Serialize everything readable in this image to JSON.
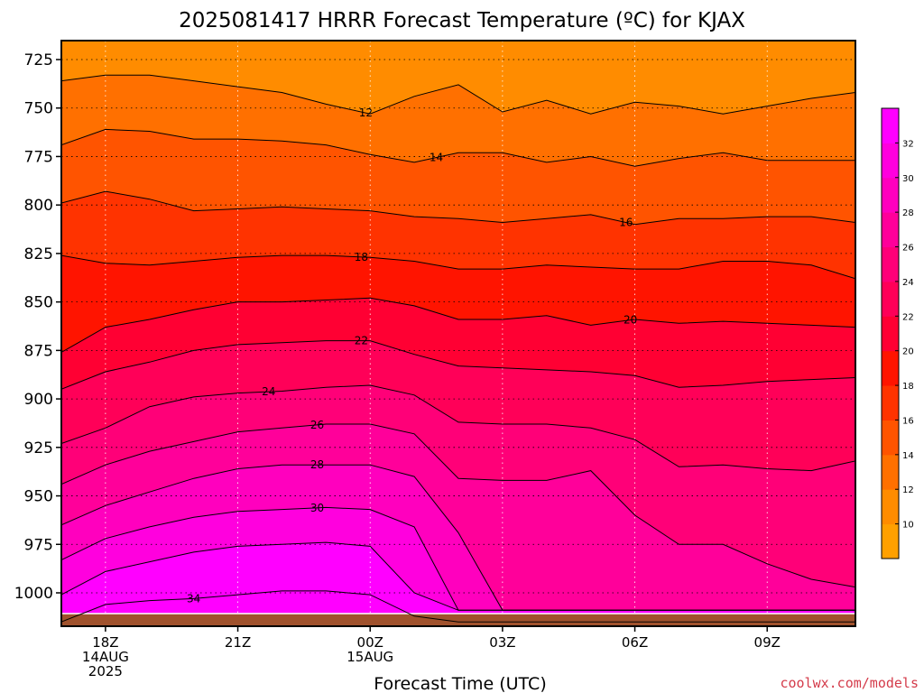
{
  "chart_data": {
    "type": "heatmap",
    "title": "2025081417 HRRR Forecast Temperature (ºC) for KJAX",
    "xlabel": "Forecast Time (UTC)",
    "ylabel": "",
    "credit": "coolwx.com/models",
    "yaxis": {
      "units": "hPa",
      "range": [
        1020,
        710
      ],
      "ticks": [
        725,
        750,
        775,
        800,
        825,
        850,
        875,
        900,
        925,
        950,
        975,
        1000
      ]
    },
    "xaxis": {
      "range_hours_after_17Z_14AUG": [
        0,
        18
      ],
      "ticks": [
        {
          "hour": 1,
          "lines": [
            "18Z",
            "14AUG",
            "2025"
          ]
        },
        {
          "hour": 4,
          "lines": [
            "21Z"
          ]
        },
        {
          "hour": 7,
          "lines": [
            "00Z",
            "15AUG"
          ]
        },
        {
          "hour": 10,
          "lines": [
            "03Z"
          ]
        },
        {
          "hour": 13,
          "lines": [
            "06Z"
          ]
        },
        {
          "hour": 16,
          "lines": [
            "09Z"
          ]
        }
      ]
    },
    "colorbar": {
      "levels": [
        8,
        10,
        12,
        14,
        16,
        18,
        20,
        22,
        24,
        26,
        28,
        30,
        32,
        34
      ],
      "labels": [
        10,
        12,
        14,
        16,
        18,
        20,
        22,
        24,
        26,
        28,
        30,
        32
      ],
      "colors": [
        "#ffa000",
        "#ff8c00",
        "#ff7000",
        "#ff5400",
        "#ff3300",
        "#ff1400",
        "#ff0033",
        "#ff0058",
        "#ff0078",
        "#ff009a",
        "#ff00be",
        "#ff00de",
        "#ff00ff"
      ]
    },
    "ground_color": "#a0522d",
    "isotherms": [
      {
        "value": 12,
        "pressure": [
          736,
          733,
          733,
          736,
          739,
          742,
          748,
          753,
          744,
          738,
          752,
          746,
          753,
          747,
          749,
          753,
          749,
          745,
          742
        ],
        "label_hour": 6.9
      },
      {
        "value": 14,
        "pressure": [
          769,
          761,
          762,
          766,
          766,
          767,
          769,
          774,
          778,
          773,
          773,
          778,
          775,
          780,
          776,
          773,
          777,
          777,
          777
        ],
        "label_hour": 8.5
      },
      {
        "value": 16,
        "pressure": [
          799,
          793,
          797,
          803,
          802,
          801,
          802,
          803,
          806,
          807,
          809,
          807,
          805,
          810,
          807,
          807,
          806,
          806,
          809
        ],
        "label_hour": 12.8
      },
      {
        "value": 18,
        "pressure": [
          826,
          830,
          831,
          829,
          827,
          826,
          826,
          827,
          829,
          833,
          833,
          831,
          832,
          833,
          833,
          829,
          829,
          831,
          838
        ],
        "label_hour": 6.8
      },
      {
        "value": 20,
        "pressure": [
          876,
          863,
          859,
          854,
          850,
          850,
          849,
          848,
          852,
          859,
          859,
          857,
          862,
          859,
          861,
          860,
          861,
          862,
          863
        ],
        "label_hour": 12.9
      },
      {
        "value": 22,
        "pressure": [
          895,
          886,
          881,
          875,
          872,
          871,
          870,
          870,
          877,
          883,
          884,
          885,
          886,
          888,
          894,
          893,
          891,
          890,
          889
        ],
        "label_hour": 6.8
      },
      {
        "value": 24,
        "pressure": [
          923,
          915,
          904,
          899,
          897,
          896,
          894,
          893,
          898,
          912,
          913,
          913,
          915,
          921,
          935,
          934,
          936,
          937,
          932
        ],
        "label_hour": 4.7
      },
      {
        "value": 26,
        "pressure": [
          944,
          934,
          927,
          922,
          917,
          915,
          913,
          913,
          918,
          941,
          942,
          942,
          937,
          960,
          975,
          975,
          985,
          993,
          997
        ],
        "label_hour": 5.8
      },
      {
        "value": 28,
        "pressure": [
          965,
          955,
          948,
          941,
          936,
          934,
          934,
          934,
          940,
          969,
          1009,
          1009,
          1009,
          1009,
          1009,
          1009,
          1009,
          1009,
          1009
        ],
        "label_hour": 5.8
      },
      {
        "value": 30,
        "pressure": [
          983,
          972,
          966,
          961,
          958,
          957,
          956,
          957,
          966,
          1009,
          1009,
          1009,
          1009,
          1009,
          1009,
          1009,
          1009,
          1009,
          1009
        ],
        "label_hour": 5.8
      },
      {
        "value": 32,
        "pressure": [
          1001,
          989,
          984,
          979,
          976,
          975,
          974,
          976,
          1000,
          1009,
          1009,
          1009,
          1009,
          1009,
          1009,
          1009,
          1009,
          1009,
          1009
        ],
        "label_hour": null
      },
      {
        "value": 34,
        "pressure": [
          1015,
          1006,
          1004,
          1003,
          1001,
          999,
          999,
          1001,
          1012,
          1015,
          1015,
          1015,
          1015,
          1015,
          1015,
          1015,
          1015,
          1015,
          1015
        ],
        "label_hour": 3.0
      }
    ]
  }
}
